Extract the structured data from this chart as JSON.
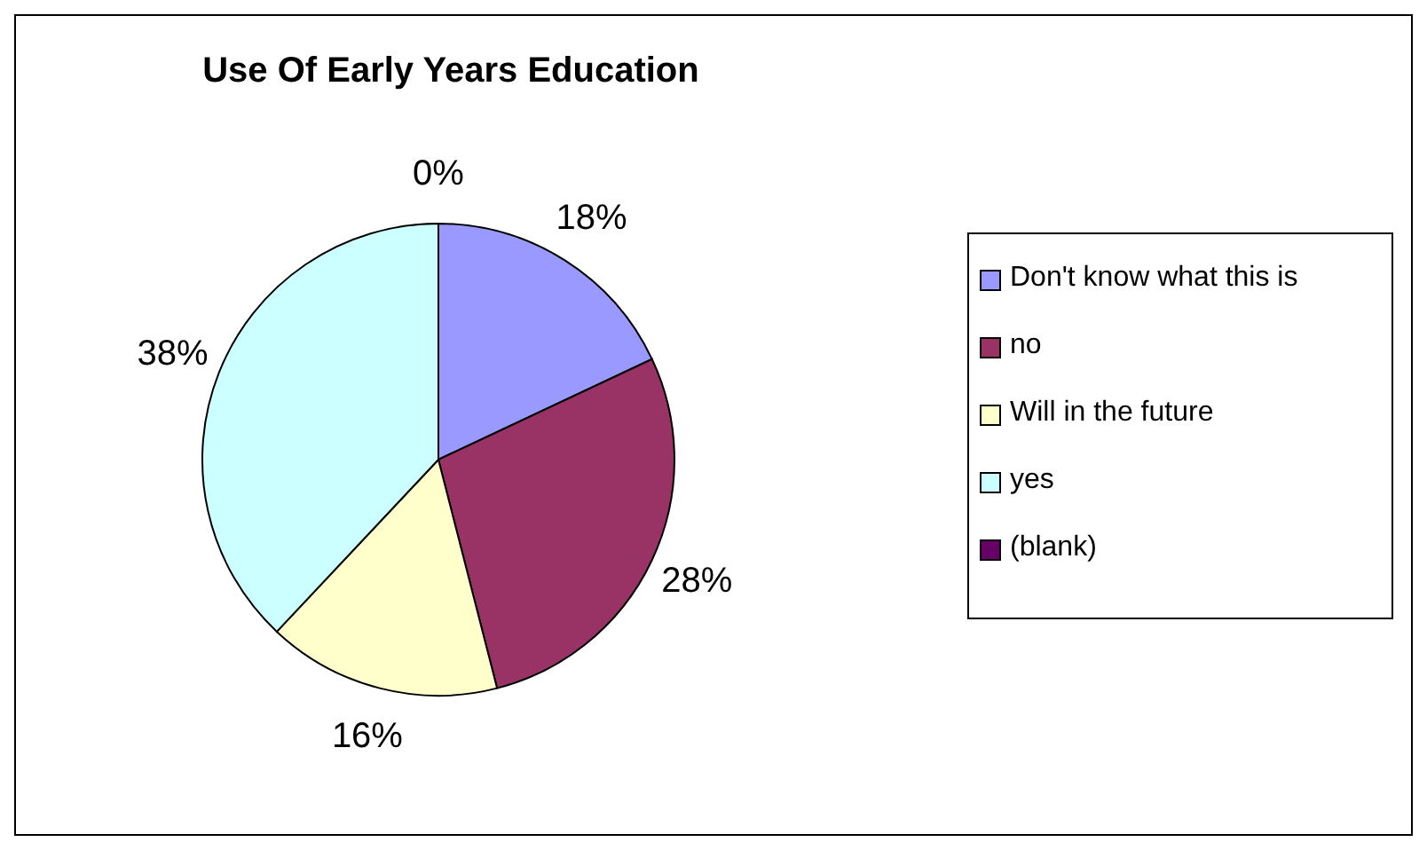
{
  "chart_data": {
    "type": "pie",
    "title": "Use Of Early Years Education",
    "categories": [
      "Don't know what this is",
      "no",
      "Will in the future",
      "yes",
      "(blank)"
    ],
    "values": [
      18,
      28,
      16,
      38,
      0
    ],
    "colors": [
      "#9999ff",
      "#993366",
      "#ffffcc",
      "#ccffff",
      "#660066"
    ],
    "value_labels": [
      "18%",
      "28%",
      "16%",
      "38%",
      "0%"
    ],
    "legend": "right"
  }
}
